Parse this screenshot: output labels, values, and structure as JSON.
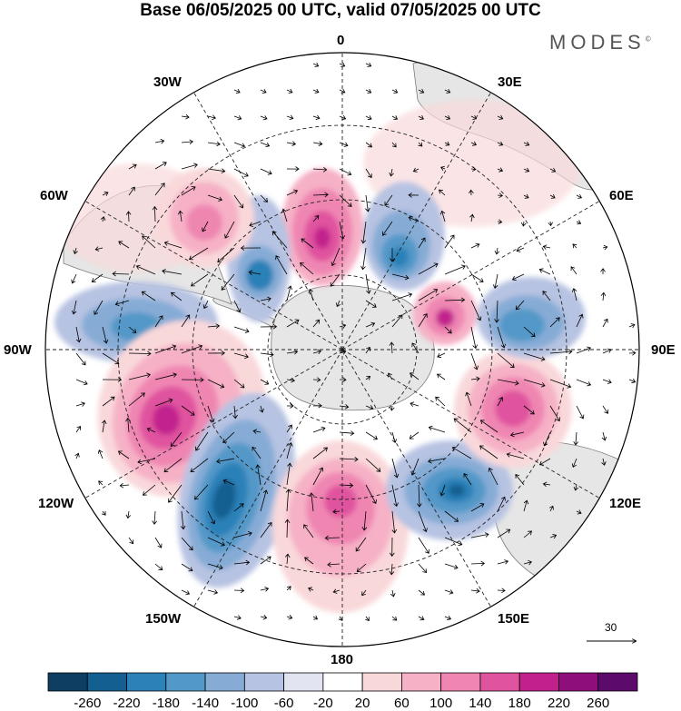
{
  "title": "Base 06/05/2025 00 UTC, valid 07/05/2025 00 UTC",
  "brand": "MODES",
  "brand_mark": "©",
  "longitude_labels": {
    "top": "0",
    "n30e": "30E",
    "n60e": "60E",
    "e90": "90E",
    "s120e": "120E",
    "s150e": "150E",
    "bottom": "180",
    "s150w": "150W",
    "s120w": "120W",
    "w90": "90W",
    "n60w": "60W",
    "n30w": "30W"
  },
  "vector_scale_label": "30",
  "colorbar": {
    "ticks": [
      "-260",
      "-220",
      "-180",
      "-140",
      "-100",
      "-60",
      "-20",
      "20",
      "60",
      "100",
      "140",
      "180",
      "220",
      "260"
    ],
    "colors": [
      "#0e3f62",
      "#135f91",
      "#2c81b8",
      "#5298c8",
      "#86acd6",
      "#b7c3e2",
      "#e2e4f2",
      "#ffffff",
      "#f9d8da",
      "#f6b1c6",
      "#ef86b2",
      "#e0539f",
      "#c2218d",
      "#8e0f7c",
      "#5c0a6c"
    ]
  },
  "map_style": {
    "background": "#ffffff",
    "land": "#e8e8e8",
    "coast": "#7a7a7a",
    "graticule": "#222222"
  },
  "anomalies": [
    {
      "name": "pink-north-center",
      "value": 240
    },
    {
      "name": "blue-north-right",
      "value": -200
    },
    {
      "name": "blue-north-left",
      "value": -190
    },
    {
      "name": "pink-nw",
      "value": 130
    },
    {
      "name": "blue-west",
      "value": -150
    },
    {
      "name": "pink-west-large",
      "value": 230
    },
    {
      "name": "blue-sw-large",
      "value": -250
    },
    {
      "name": "pink-south",
      "value": 200
    },
    {
      "name": "blue-se",
      "value": -240
    },
    {
      "name": "pink-east",
      "value": 200
    },
    {
      "name": "blue-east",
      "value": -190
    },
    {
      "name": "pink-ne-small",
      "value": 220
    },
    {
      "name": "pink-ne-broad",
      "value": 50
    }
  ]
}
